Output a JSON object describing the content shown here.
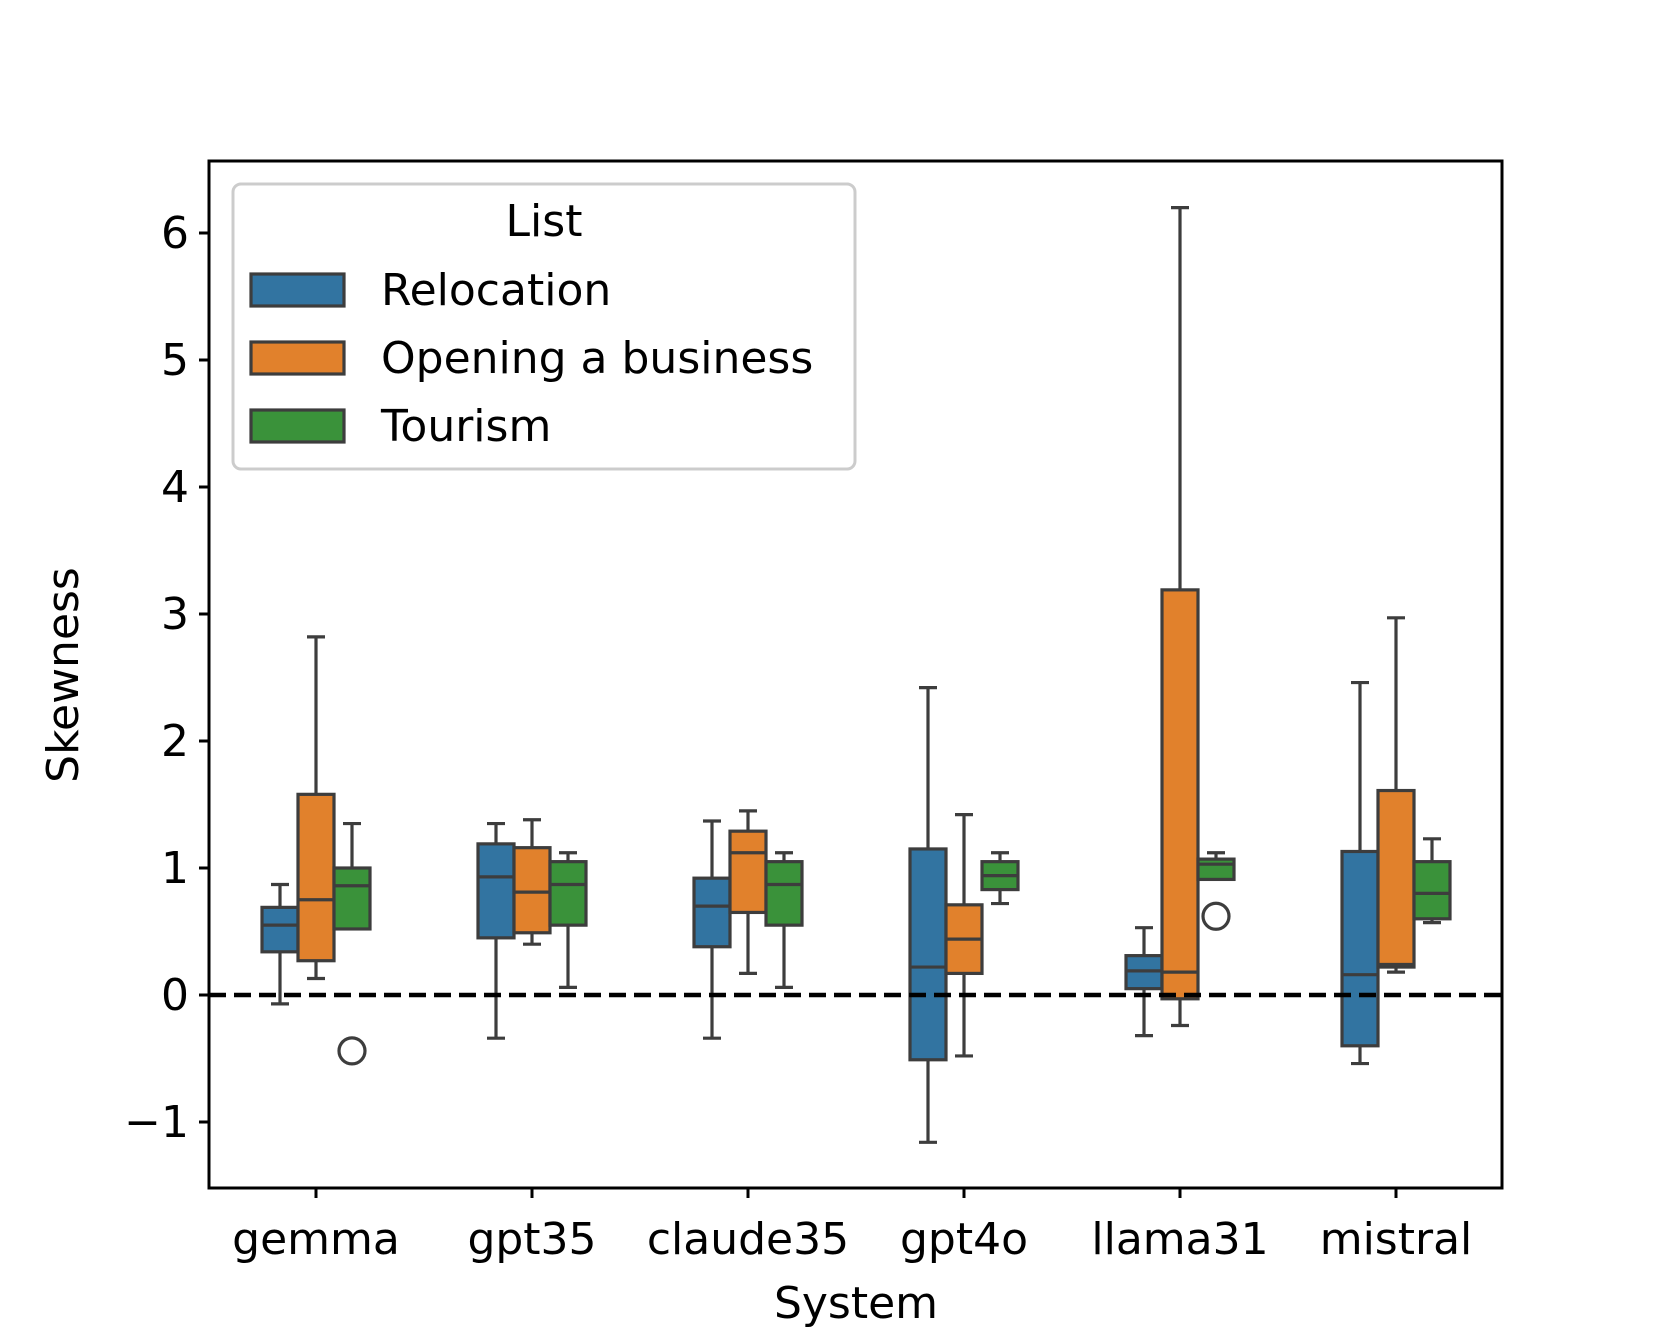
{
  "chart_data": {
    "type": "box",
    "title": "",
    "xlabel": "System",
    "ylabel": "Skewness",
    "ylim": [
      -1.5,
      6.6
    ],
    "yticks": [
      -1,
      0,
      1,
      2,
      3,
      4,
      5,
      6
    ],
    "ytick_labels": [
      "−1",
      "0",
      "1",
      "2",
      "3",
      "4",
      "5",
      "6"
    ],
    "categories": [
      "gemma",
      "gpt35",
      "claude35",
      "gpt4o",
      "llama31",
      "mistral"
    ],
    "reference_line": {
      "y": 0,
      "style": "dashed",
      "color": "#000000"
    },
    "legend": {
      "title": "List",
      "placement": "upper-left"
    },
    "series": [
      {
        "name": "Relocation",
        "color": "#3274a1",
        "boxes": [
          {
            "whisker_low": -0.07,
            "q1": 0.34,
            "median": 0.55,
            "q3": 0.69,
            "whisker_high": 0.87,
            "outliers": []
          },
          {
            "whisker_low": -0.34,
            "q1": 0.45,
            "median": 0.93,
            "q3": 1.19,
            "whisker_high": 1.35,
            "outliers": []
          },
          {
            "whisker_low": -0.34,
            "q1": 0.38,
            "median": 0.7,
            "q3": 0.92,
            "whisker_high": 1.37,
            "outliers": []
          },
          {
            "whisker_low": -1.16,
            "q1": -0.51,
            "median": 0.22,
            "q3": 1.15,
            "whisker_high": 2.42,
            "outliers": []
          },
          {
            "whisker_low": -0.32,
            "q1": 0.05,
            "median": 0.19,
            "q3": 0.31,
            "whisker_high": 0.53,
            "outliers": []
          },
          {
            "whisker_low": -0.54,
            "q1": -0.4,
            "median": 0.16,
            "q3": 1.13,
            "whisker_high": 2.46,
            "outliers": []
          }
        ]
      },
      {
        "name": "Opening a business",
        "color": "#e1812c",
        "boxes": [
          {
            "whisker_low": 0.13,
            "q1": 0.27,
            "median": 0.75,
            "q3": 1.58,
            "whisker_high": 2.82,
            "outliers": []
          },
          {
            "whisker_low": 0.4,
            "q1": 0.49,
            "median": 0.81,
            "q3": 1.16,
            "whisker_high": 1.38,
            "outliers": []
          },
          {
            "whisker_low": 0.17,
            "q1": 0.65,
            "median": 1.12,
            "q3": 1.29,
            "whisker_high": 1.45,
            "outliers": []
          },
          {
            "whisker_low": -0.48,
            "q1": 0.17,
            "median": 0.44,
            "q3": 0.71,
            "whisker_high": 1.42,
            "outliers": []
          },
          {
            "whisker_low": -0.24,
            "q1": -0.03,
            "median": 0.18,
            "q3": 3.19,
            "whisker_high": 6.2,
            "outliers": []
          },
          {
            "whisker_low": 0.18,
            "q1": 0.22,
            "median": 0.24,
            "q3": 1.61,
            "whisker_high": 2.97,
            "outliers": []
          }
        ]
      },
      {
        "name": "Tourism",
        "color": "#3a923a",
        "boxes": [
          {
            "whisker_low": 0.52,
            "q1": 0.52,
            "median": 0.86,
            "q3": 1.0,
            "whisker_high": 1.35,
            "outliers": [
              -0.44
            ]
          },
          {
            "whisker_low": 0.06,
            "q1": 0.55,
            "median": 0.87,
            "q3": 1.05,
            "whisker_high": 1.12,
            "outliers": []
          },
          {
            "whisker_low": 0.06,
            "q1": 0.55,
            "median": 0.87,
            "q3": 1.05,
            "whisker_high": 1.12,
            "outliers": []
          },
          {
            "whisker_low": 0.72,
            "q1": 0.83,
            "median": 0.94,
            "q3": 1.05,
            "whisker_high": 1.12,
            "outliers": []
          },
          {
            "whisker_low": 0.91,
            "q1": 0.91,
            "median": 1.03,
            "q3": 1.07,
            "whisker_high": 1.12,
            "outliers": [
              0.62
            ]
          },
          {
            "whisker_low": 0.57,
            "q1": 0.6,
            "median": 0.8,
            "q3": 1.05,
            "whisker_high": 1.23,
            "outliers": []
          }
        ]
      }
    ]
  }
}
